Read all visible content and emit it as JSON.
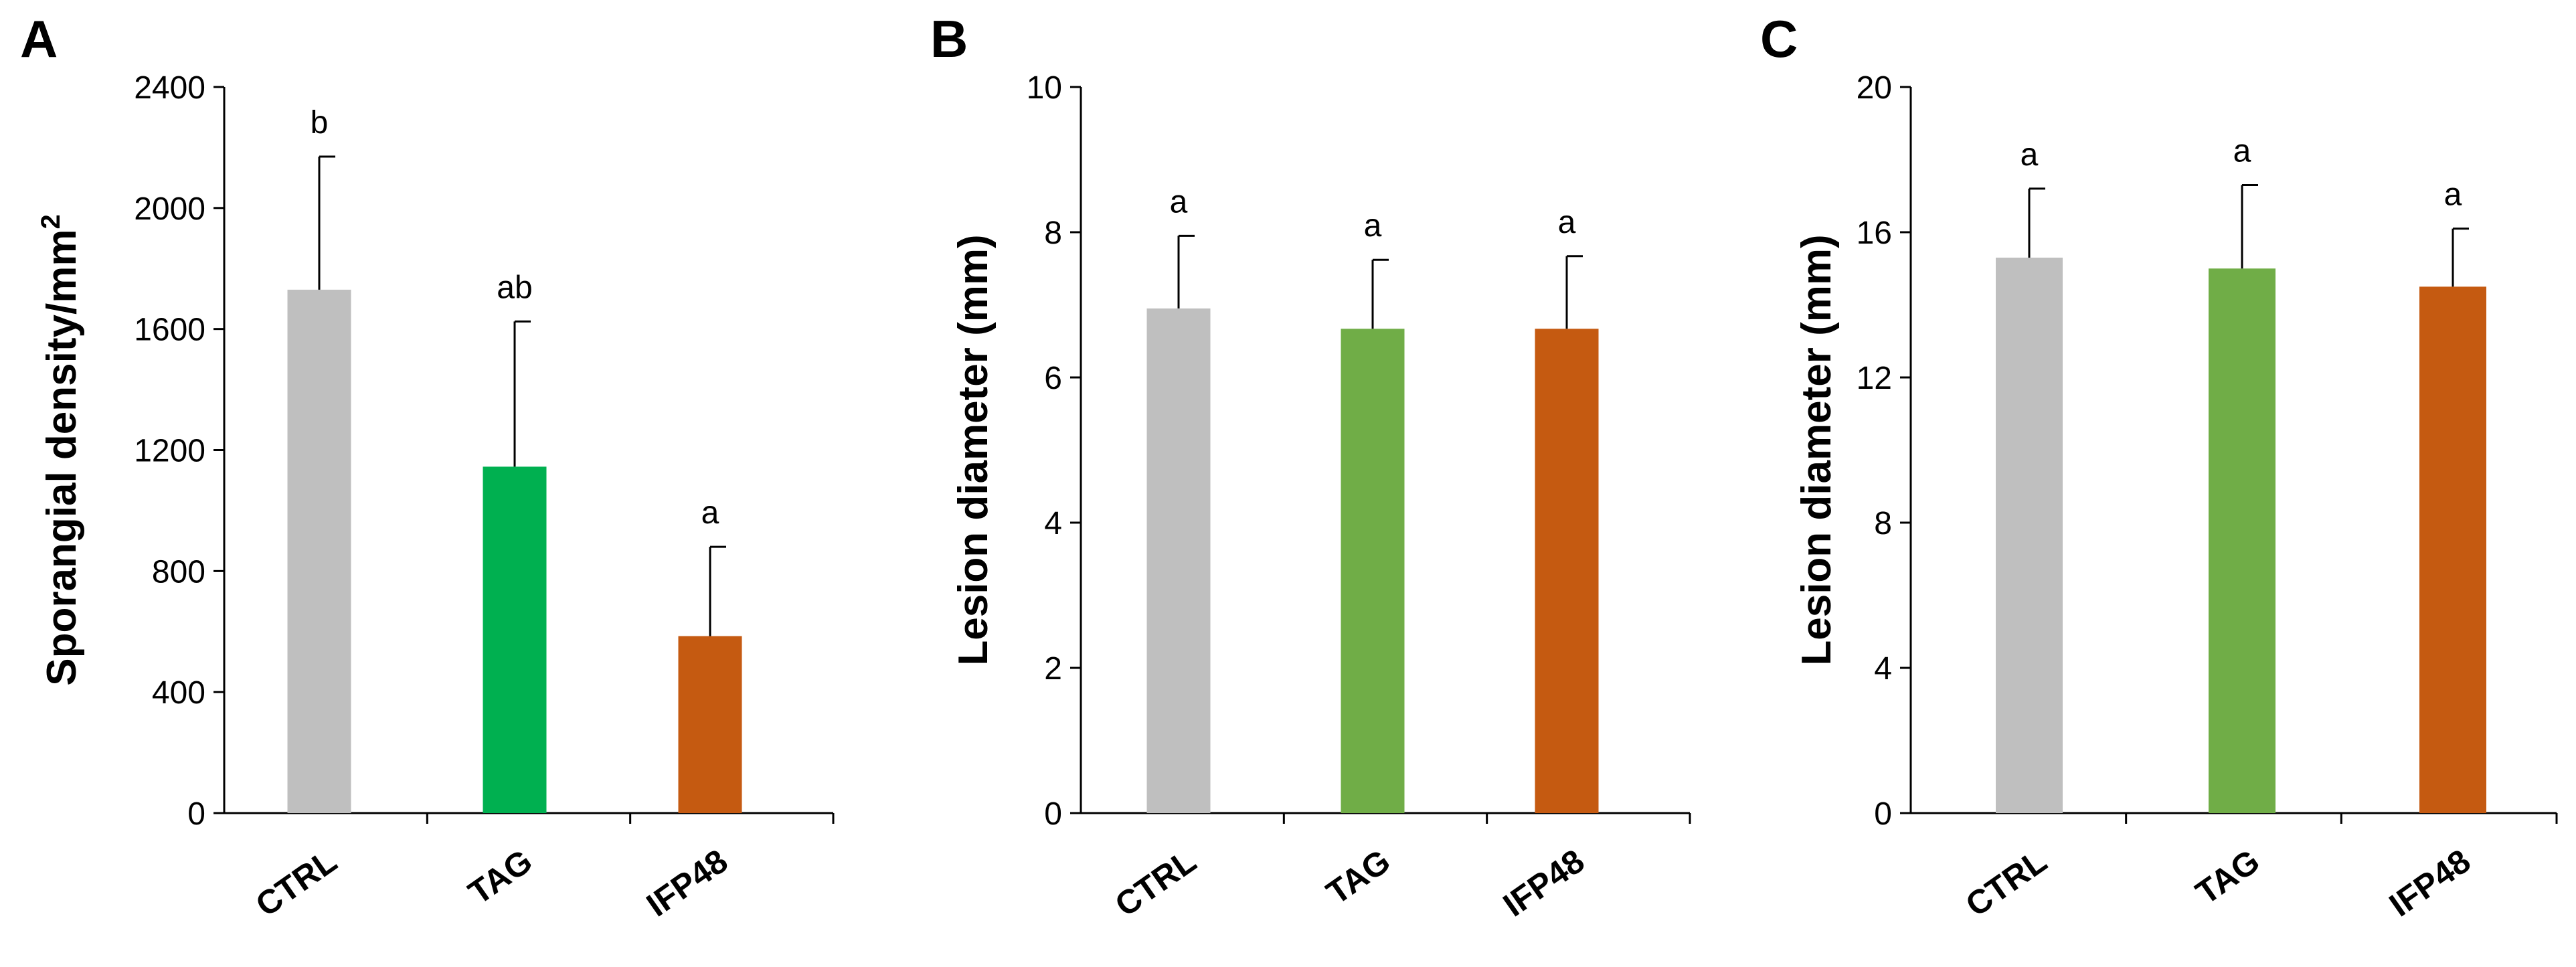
{
  "chart_data": [
    {
      "type": "bar",
      "panel": "A",
      "title": "",
      "xlabel": "",
      "ylabel": "Sporangial density/mm",
      "ylabel_superscript": "2",
      "ylim": [
        0,
        2400
      ],
      "yticks": [
        "0",
        "400",
        "800",
        "1200",
        "1600",
        "2000",
        "2400"
      ],
      "categories": [
        "CTRL",
        "TAG",
        "IFP48"
      ],
      "values": [
        1730,
        1145,
        585
      ],
      "errors": [
        440,
        480,
        295
      ],
      "annotations": [
        "b",
        "ab",
        "a"
      ],
      "colors": [
        "#bfbfbf",
        "#00b050",
        "#c55a11"
      ],
      "grid": false,
      "legend": "none"
    },
    {
      "type": "bar",
      "panel": "B",
      "title": "",
      "xlabel": "",
      "ylabel": "Lesion diameter (mm)",
      "ylim": [
        0,
        10
      ],
      "yticks": [
        "0",
        "2",
        "4",
        "6",
        "8",
        "10"
      ],
      "categories": [
        "CTRL",
        "TAG",
        "IFP48"
      ],
      "values": [
        6.95,
        6.67,
        6.67
      ],
      "errors": [
        1.0,
        0.95,
        1.0
      ],
      "annotations": [
        "a",
        "a",
        "a"
      ],
      "colors": [
        "#bfbfbf",
        "#70ad47",
        "#c55a11"
      ],
      "grid": false,
      "legend": "none"
    },
    {
      "type": "bar",
      "panel": "C",
      "title": "",
      "xlabel": "",
      "ylabel": "Lesion diameter (mm)",
      "ylim": [
        0,
        20
      ],
      "yticks": [
        "0",
        "4",
        "8",
        "12",
        "16",
        "20"
      ],
      "categories": [
        "CTRL",
        "TAG",
        "IFP48"
      ],
      "values": [
        15.3,
        15.0,
        14.5
      ],
      "errors": [
        1.9,
        2.3,
        1.6
      ],
      "annotations": [
        "a",
        "a",
        "a"
      ],
      "colors": [
        "#bfbfbf",
        "#70ad47",
        "#c55a11"
      ],
      "grid": false,
      "legend": "none"
    }
  ]
}
